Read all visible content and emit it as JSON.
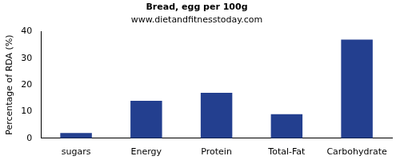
{
  "chart_data": {
    "type": "bar",
    "title": "Bread, egg per 100g",
    "subtitle": "www.dietandfitnesstoday.com",
    "y_label": "Percentage of RDA (%)",
    "categories": [
      "sugars",
      "Energy",
      "Protein",
      "Total-Fat",
      "Carbohydrate"
    ],
    "values": [
      2,
      14,
      17,
      9,
      37
    ],
    "color": "#233f8f",
    "ylim": [
      0,
      40
    ],
    "yticks": [
      0,
      10,
      20,
      30,
      40
    ],
    "grid": false
  }
}
